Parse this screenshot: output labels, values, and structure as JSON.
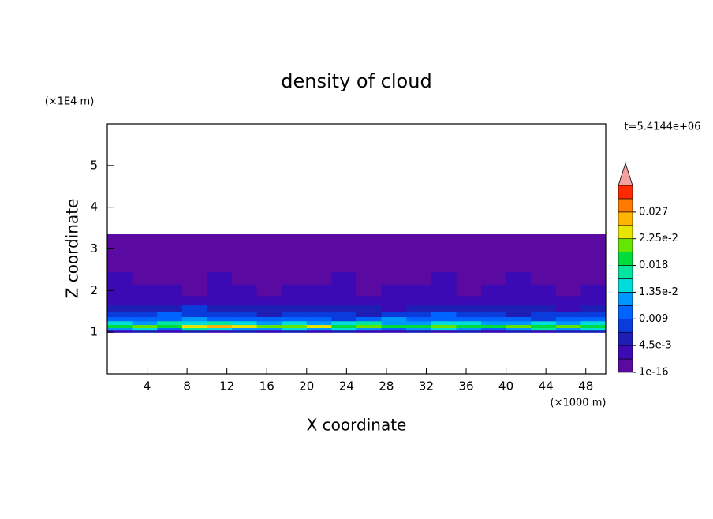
{
  "chart_data": {
    "type": "contour",
    "title": "density of cloud",
    "x_label": "X coordinate",
    "y_label": "Z coordinate",
    "x_unit": "(×1000 m)",
    "y_unit": "(×1E4 m)",
    "annotation": "t=5.4144e+06",
    "xlim": [
      0,
      50
    ],
    "ylim": [
      0,
      6
    ],
    "xticks": [
      4,
      8,
      12,
      16,
      20,
      24,
      28,
      32,
      36,
      40,
      44,
      48
    ],
    "yticks": [
      1,
      2,
      3,
      4,
      5
    ],
    "x": [
      1.25,
      3.75,
      6.25,
      8.75,
      11.25,
      13.75,
      16.25,
      18.75,
      21.25,
      23.75,
      26.25,
      28.75,
      31.25,
      33.75,
      36.25,
      38.75,
      41.25,
      43.75,
      46.25,
      48.75
    ],
    "y": [
      1.02,
      1.07,
      1.14,
      1.22,
      1.32,
      1.42,
      1.55,
      1.75,
      2.0,
      2.3,
      2.6,
      2.9,
      3.2
    ],
    "z": [
      [
        0.004,
        0.005,
        0.003,
        0.006,
        0.004,
        0.005,
        0.003,
        0.005,
        0.004,
        0.006,
        0.004,
        0.003,
        0.005,
        0.004,
        0.006,
        0.003,
        0.005,
        0.004,
        0.006,
        0.005
      ],
      [
        0.012,
        0.014,
        0.011,
        0.016,
        0.015,
        0.013,
        0.012,
        0.014,
        0.013,
        0.015,
        0.012,
        0.011,
        0.013,
        0.014,
        0.012,
        0.011,
        0.013,
        0.016,
        0.012,
        0.014
      ],
      [
        0.019,
        0.021,
        0.02,
        0.024,
        0.025,
        0.023,
        0.022,
        0.021,
        0.023,
        0.02,
        0.021,
        0.019,
        0.02,
        0.021,
        0.018,
        0.02,
        0.022,
        0.019,
        0.021,
        0.02
      ],
      [
        0.014,
        0.013,
        0.016,
        0.015,
        0.017,
        0.014,
        0.013,
        0.015,
        0.012,
        0.014,
        0.016,
        0.013,
        0.012,
        0.014,
        0.015,
        0.013,
        0.012,
        0.014,
        0.013,
        0.015
      ],
      [
        0.01,
        0.011,
        0.009,
        0.012,
        0.01,
        0.011,
        0.009,
        0.01,
        0.011,
        0.008,
        0.01,
        0.012,
        0.009,
        0.01,
        0.011,
        0.009,
        0.01,
        0.008,
        0.011,
        0.01
      ],
      [
        0.008,
        0.007,
        0.009,
        0.008,
        0.007,
        0.008,
        0.006,
        0.007,
        0.008,
        0.007,
        0.006,
        0.008,
        0.007,
        0.009,
        0.007,
        0.008,
        0.006,
        0.007,
        0.008,
        0.007
      ],
      [
        0.006,
        0.005,
        0.006,
        0.007,
        0.005,
        0.006,
        0.005,
        0.006,
        0.005,
        0.006,
        0.005,
        0.004,
        0.006,
        0.005,
        0.006,
        0.005,
        0.006,
        0.005,
        0.004,
        0.005
      ],
      [
        0.004,
        0.003,
        0.004,
        0.004,
        0.003,
        0.004,
        0.003,
        0.004,
        0.003,
        0.004,
        0.004,
        0.003,
        0.004,
        0.003,
        0.004,
        0.004,
        0.003,
        0.004,
        0.003,
        0.004
      ],
      [
        0.003,
        0.0025,
        0.003,
        0.002,
        0.0025,
        0.003,
        0.002,
        0.0025,
        0.003,
        0.0025,
        0.002,
        0.003,
        0.0025,
        0.003,
        0.002,
        0.0025,
        0.003,
        0.0025,
        0.002,
        0.003
      ],
      [
        0.0025,
        0.002,
        0.0015,
        0.002,
        0.0025,
        0.0015,
        0.002,
        0.0015,
        0.002,
        0.0025,
        0.002,
        0.0015,
        0.002,
        0.0025,
        0.002,
        0.0015,
        0.0025,
        0.002,
        0.0015,
        0.002
      ],
      [
        0.001,
        0.0015,
        0.001,
        0.0012,
        0.001,
        0.0008,
        0.001,
        0.0012,
        0.001,
        0.0015,
        0.001,
        0.0008,
        0.001,
        0.0012,
        0.001,
        0.0008,
        0.001,
        0.0012,
        0.001,
        0.0015
      ],
      [
        0.0008,
        0.0006,
        0.0008,
        0.0007,
        0.0006,
        0.0008,
        0.0007,
        0.0006,
        0.0008,
        0.0007,
        0.0006,
        0.0008,
        0.0007,
        0.0006,
        0.0008,
        0.0007,
        0.0006,
        0.0008,
        0.0007,
        0.0006
      ],
      [
        0.0004,
        0.0005,
        0.0004,
        0.0003,
        0.0005,
        0.0004,
        0.0003,
        0.0004,
        0.0005,
        0.0004,
        0.0003,
        0.0004,
        0.0005,
        0.0004,
        0.0003,
        0.0004,
        0.0005,
        0.0004,
        0.0003,
        0.0004
      ]
    ],
    "colorbar": {
      "levels": [
        1e-16,
        0.00225,
        0.0045,
        0.00675,
        0.009,
        0.01125,
        0.0135,
        0.01575,
        0.018,
        0.02025,
        0.0225,
        0.02475,
        0.027,
        0.02925,
        0.0315
      ],
      "colors": [
        "#5a0aa0",
        "#3c0ab4",
        "#1e1eb4",
        "#0a3cdc",
        "#0064ff",
        "#0096ff",
        "#00dcdc",
        "#00e6a0",
        "#00dc3c",
        "#64e600",
        "#e6e600",
        "#ffb400",
        "#ff7800",
        "#ff2800"
      ],
      "extend_color": "#f4a0a0",
      "ticks": [
        {
          "value": 1e-16,
          "label": "1e-16"
        },
        {
          "value": 0.0045,
          "label": "4.5e-3"
        },
        0.009,
        {
          "value": 0.0135,
          "label": "1.35e-2"
        },
        0.018,
        {
          "value": 0.0225,
          "label": "2.25e-2"
        },
        0.027
      ]
    }
  }
}
